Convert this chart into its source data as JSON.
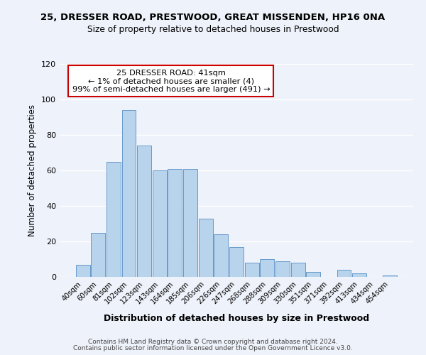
{
  "title1": "25, DRESSER ROAD, PRESTWOOD, GREAT MISSENDEN, HP16 0NA",
  "title2": "Size of property relative to detached houses in Prestwood",
  "xlabel": "Distribution of detached houses by size in Prestwood",
  "ylabel": "Number of detached properties",
  "bar_labels": [
    "40sqm",
    "60sqm",
    "81sqm",
    "102sqm",
    "123sqm",
    "143sqm",
    "164sqm",
    "185sqm",
    "206sqm",
    "226sqm",
    "247sqm",
    "268sqm",
    "288sqm",
    "309sqm",
    "330sqm",
    "351sqm",
    "371sqm",
    "392sqm",
    "413sqm",
    "434sqm",
    "454sqm"
  ],
  "bar_values": [
    7,
    25,
    65,
    94,
    74,
    60,
    61,
    61,
    33,
    24,
    17,
    8,
    10,
    9,
    8,
    3,
    0,
    4,
    2,
    0,
    1
  ],
  "bar_color": "#b8d4ec",
  "bar_edge_color": "#6699cc",
  "annotation_title": "25 DRESSER ROAD: 41sqm",
  "annotation_line1": "← 1% of detached houses are smaller (4)",
  "annotation_line2": "99% of semi-detached houses are larger (491) →",
  "annotation_box_color": "#ffffff",
  "annotation_border_color": "#cc0000",
  "ylim": [
    0,
    120
  ],
  "yticks": [
    0,
    20,
    40,
    60,
    80,
    100,
    120
  ],
  "footer1": "Contains HM Land Registry data © Crown copyright and database right 2024.",
  "footer2": "Contains public sector information licensed under the Open Government Licence v3.0.",
  "bg_color": "#eef2fa"
}
